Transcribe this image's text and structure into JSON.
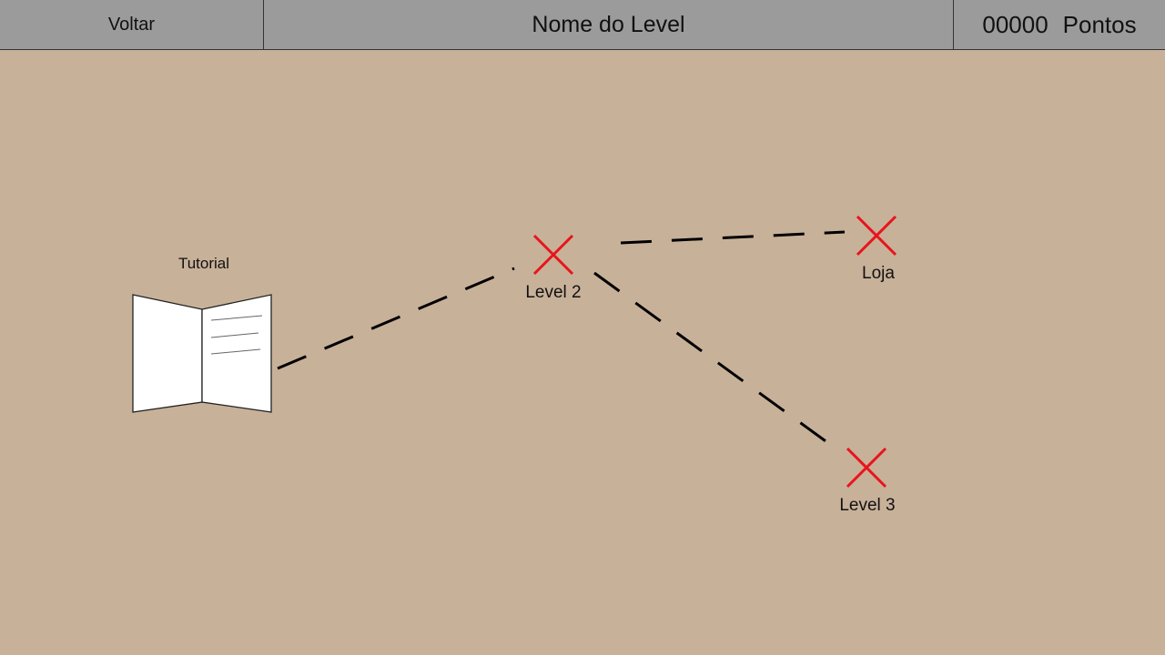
{
  "header": {
    "back_label": "Voltar",
    "level_name": "Nome do Level",
    "points_value": "00000",
    "points_unit": "Pontos"
  },
  "map": {
    "nodes": {
      "tutorial": {
        "label": "Tutorial",
        "icon": "open-book-icon"
      },
      "level2": {
        "label": "Level 2",
        "icon": "x-marker-icon"
      },
      "loja": {
        "label": "Loja",
        "icon": "x-marker-icon"
      },
      "level3": {
        "label": "Level 3",
        "icon": "x-marker-icon"
      }
    },
    "colors": {
      "background": "#c8b199",
      "header": "#9b9b9b",
      "marker": "#e8141c",
      "path": "#000000"
    }
  }
}
